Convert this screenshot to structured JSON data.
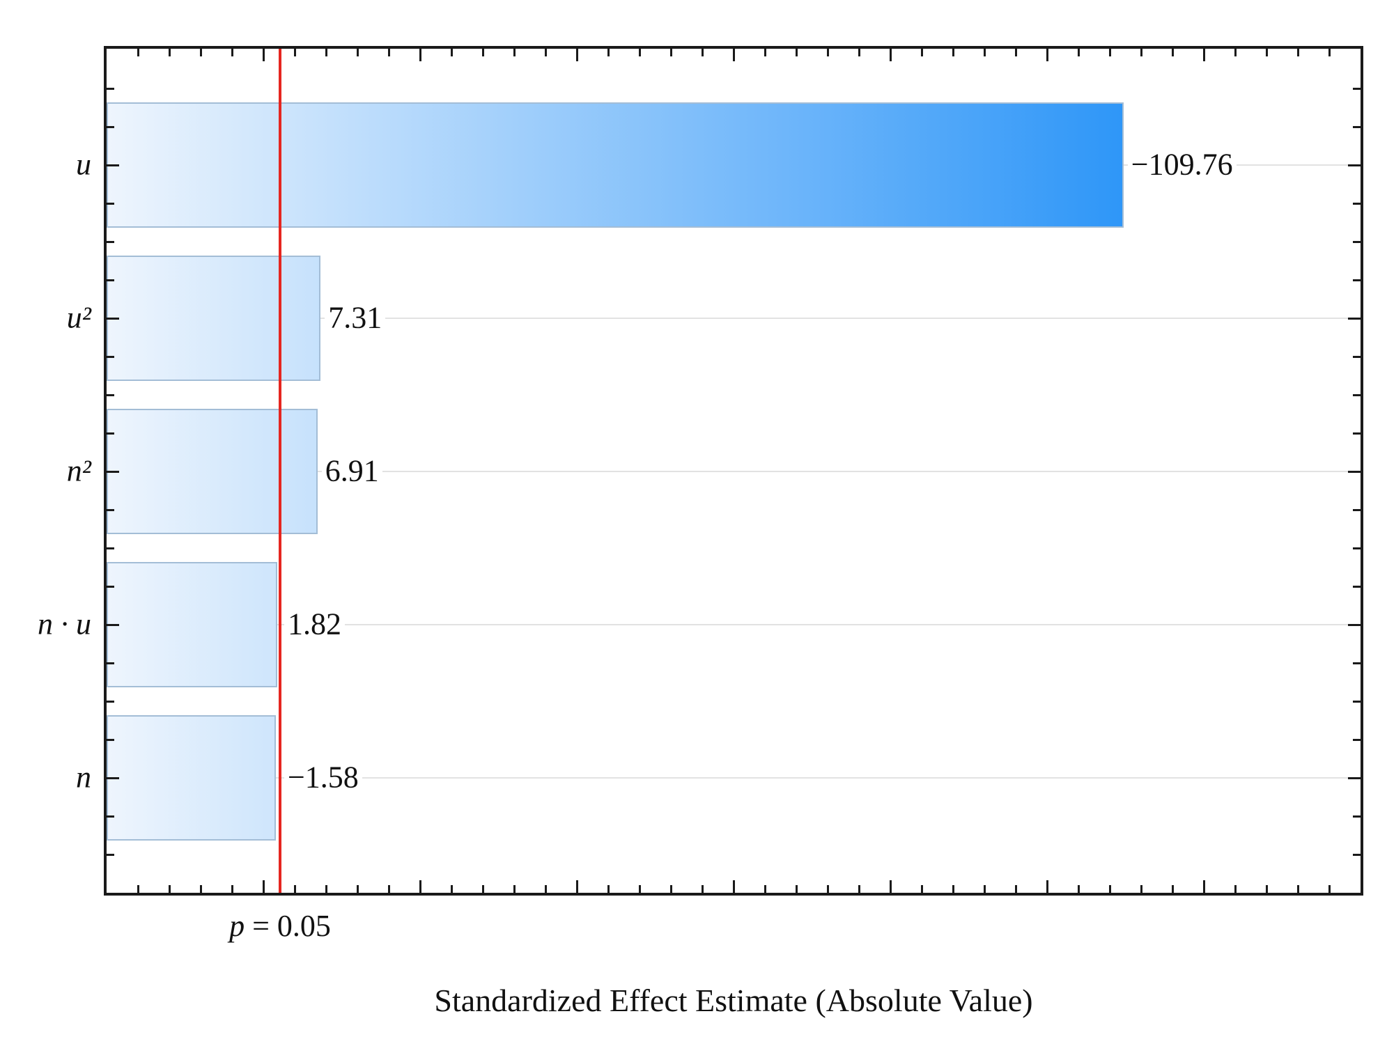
{
  "chart_data": {
    "type": "bar",
    "orientation": "horizontal",
    "title": "",
    "xlabel": "Standardized Effect Estimate (Absolute Value)",
    "categories": [
      "u",
      "u²",
      "n²",
      "n · u",
      "n"
    ],
    "values_signed": [
      -109.76,
      7.31,
      6.91,
      1.82,
      -1.58
    ],
    "bar_lengths_abs": [
      109.76,
      7.31,
      6.91,
      1.82,
      1.58
    ],
    "value_labels": [
      "−109.76",
      "7.31",
      "6.91",
      "1.82",
      "−1.58"
    ],
    "threshold": {
      "label_var": "p",
      "label_rest": " = 0.05",
      "x_value": 2.13,
      "color": "#e52620"
    },
    "x_axis": {
      "min": -20,
      "max": 140,
      "major_step": 20,
      "minor_step": 4,
      "tick_labels_visible": false
    },
    "y_axis": {
      "tick_labels_visible": true
    },
    "grid": "row-center-gridlines",
    "legend": "none",
    "colors": {
      "bar_gradient_start": "#eef5fd",
      "bar_gradient_end": "#0180f7",
      "bar_border": "#a3bdd6",
      "gridline": "#e2e2e2",
      "frame": "#1a1a1a",
      "background": "#ffffff"
    }
  }
}
